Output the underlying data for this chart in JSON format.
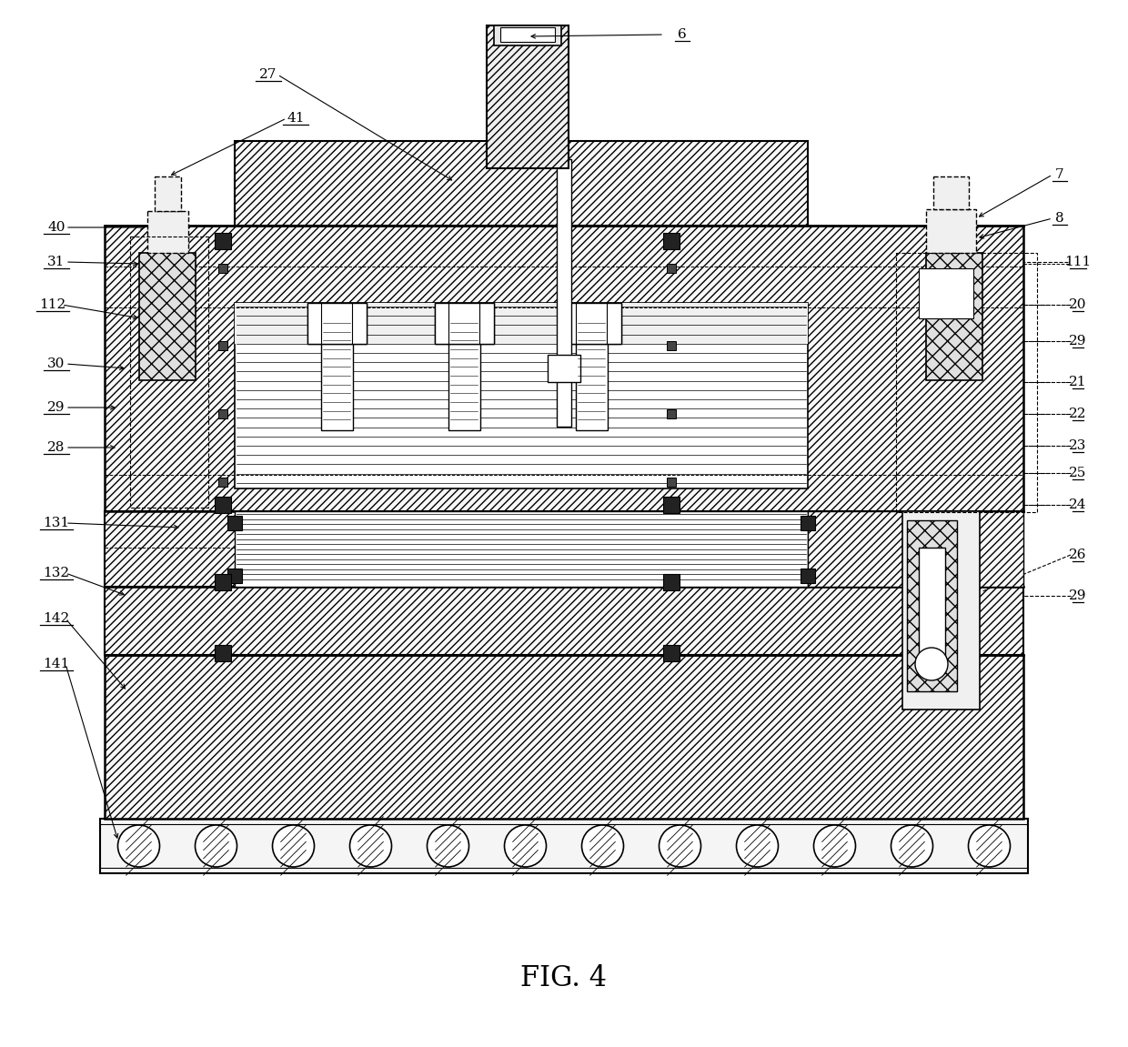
{
  "title": "FIG. 4",
  "bg": "#ffffff",
  "lc": "#000000",
  "fig_w": 1240,
  "fig_h": 1151,
  "roller_count": 12,
  "roller_r": 23
}
